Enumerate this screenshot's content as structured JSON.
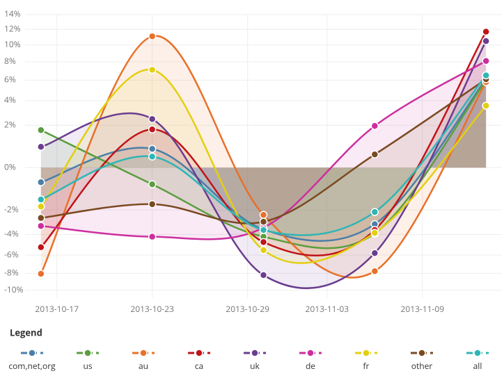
{
  "chart_data": {
    "type": "line",
    "x": [
      "2013-10-16",
      "2013-10-23",
      "2013-10-30",
      "2013-11-06",
      "2013-11-13"
    ],
    "xlim": [
      "2013-10-15",
      "2013-11-14"
    ],
    "xticks": [
      "2013-10-17",
      "2013-10-23",
      "2013-10-29",
      "2013-11-03",
      "2013-11-09"
    ],
    "ylim": [
      -11,
      14
    ],
    "yscale": "power",
    "yticks": [
      {
        "value": 14,
        "label": "14%"
      },
      {
        "value": 12,
        "label": "12%"
      },
      {
        "value": 10,
        "label": "10%"
      },
      {
        "value": 8,
        "label": "8%"
      },
      {
        "value": 6,
        "label": "6%"
      },
      {
        "value": 4,
        "label": "4%"
      },
      {
        "value": 2,
        "label": "2%"
      },
      {
        "value": 0,
        "label": "0%"
      },
      {
        "value": -2,
        "label": "-2%"
      },
      {
        "value": -4,
        "label": "-4%"
      },
      {
        "value": -6,
        "label": "-6%"
      },
      {
        "value": -8,
        "label": "-8%"
      },
      {
        "value": -10,
        "label": "-10%"
      }
    ],
    "grid": true,
    "legend_title": "Legend",
    "legend_position": "bottom",
    "series": [
      {
        "name": "com,net,org",
        "color": "#4a7fa8",
        "values": [
          -0.4,
          0.58,
          -3.55,
          -3.1,
          6.1
        ]
      },
      {
        "name": "us",
        "color": "#5a9e3e",
        "values": [
          1.66,
          -0.49,
          -4.2,
          -3.9,
          6.0
        ]
      },
      {
        "name": "au",
        "color": "#e8702a",
        "values": [
          -8.05,
          11.1,
          -2.36,
          -7.75,
          5.8
        ]
      },
      {
        "name": "ca",
        "color": "#c0141a",
        "values": [
          -5.2,
          1.71,
          -4.7,
          -3.6,
          11.7
        ]
      },
      {
        "name": "uk",
        "color": "#6a3d8f",
        "values": [
          0.68,
          2.46,
          -8.2,
          -5.8,
          10.5
        ]
      },
      {
        "name": "de",
        "color": "#cc2e9f",
        "values": [
          -3.25,
          -4.2,
          -3.4,
          1.95,
          8.1
        ]
      },
      {
        "name": "fr",
        "color": "#e3cf10",
        "values": [
          -1.76,
          7.1,
          -5.5,
          -3.85,
          3.55
        ]
      },
      {
        "name": "other",
        "color": "#7a4a21",
        "values": [
          -2.6,
          -1.6,
          -2.9,
          0.34,
          6.1
        ]
      },
      {
        "name": "all",
        "color": "#2fb5b5",
        "values": [
          -1.3,
          0.26,
          -3.6,
          -2.15,
          6.5
        ]
      }
    ]
  }
}
